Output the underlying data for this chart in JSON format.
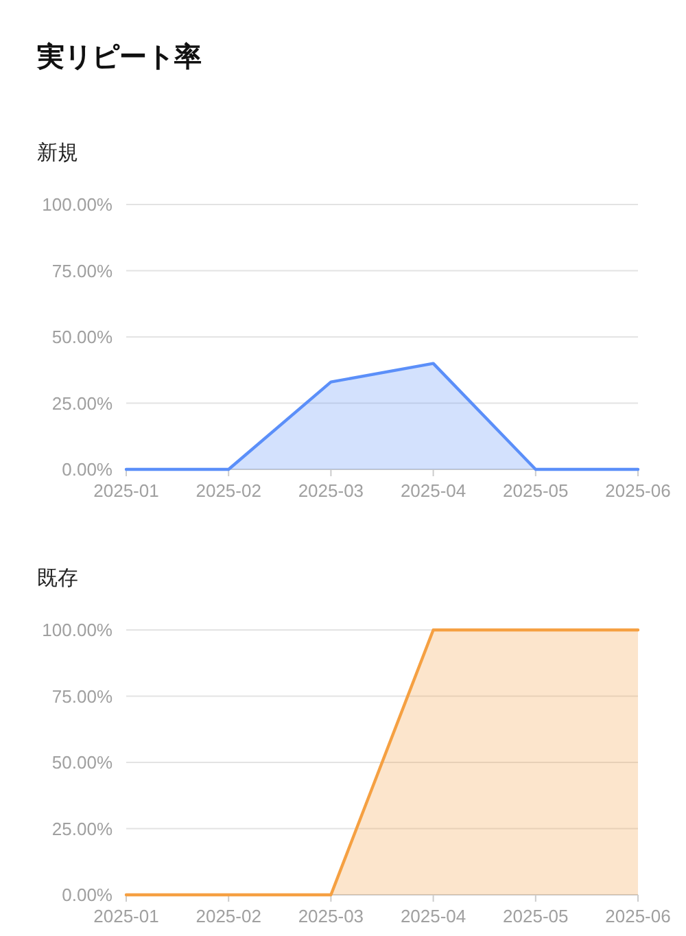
{
  "chart_data": [
    {
      "type": "area",
      "title": "実リピート率",
      "subtitle": "新規",
      "categories": [
        "2025-01",
        "2025-02",
        "2025-03",
        "2025-04",
        "2025-05",
        "2025-06"
      ],
      "series": [
        {
          "color": "#5b8ff9",
          "values": [
            0,
            0,
            33,
            40,
            0,
            0
          ]
        }
      ],
      "ylim": [
        0,
        100
      ],
      "yticks": [
        {
          "value": 0,
          "label": "0.00%"
        },
        {
          "value": 25,
          "label": "25.00%"
        },
        {
          "value": 50,
          "label": "50.00%"
        },
        {
          "value": 75,
          "label": "75.00%"
        },
        {
          "value": 100,
          "label": "100.00%"
        }
      ],
      "grid": "y"
    },
    {
      "type": "area",
      "subtitle": "既存",
      "categories": [
        "2025-01",
        "2025-02",
        "2025-03",
        "2025-04",
        "2025-05",
        "2025-06"
      ],
      "series": [
        {
          "color": "#f5a042",
          "values": [
            0,
            0,
            0,
            100,
            100,
            100
          ]
        }
      ],
      "ylim": [
        0,
        100
      ],
      "yticks": [
        {
          "value": 0,
          "label": "0.00%"
        },
        {
          "value": 25,
          "label": "25.00%"
        },
        {
          "value": 50,
          "label": "50.00%"
        },
        {
          "value": 75,
          "label": "75.00%"
        },
        {
          "value": 100,
          "label": "100.00%"
        }
      ],
      "grid": "y"
    }
  ]
}
